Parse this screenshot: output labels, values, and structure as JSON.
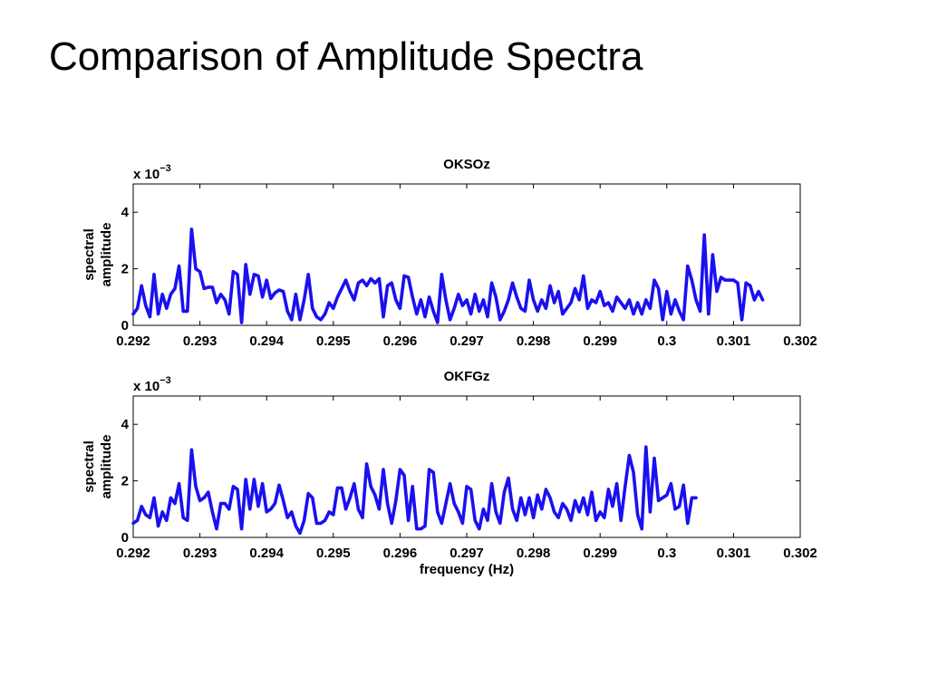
{
  "slide": {
    "title": "Comparison of Amplitude Spectra"
  },
  "chart_data": [
    {
      "type": "line",
      "title": "OKSOz",
      "xlabel": "",
      "ylabel": [
        "spectral",
        "amplitude"
      ],
      "exponent_label": "x 10",
      "exponent": "−3",
      "xlim": [
        0.292,
        0.302
      ],
      "ylim": [
        0,
        5
      ],
      "xticks": [
        0.292,
        0.293,
        0.294,
        0.295,
        0.296,
        0.297,
        0.298,
        0.299,
        0.3,
        0.301,
        0.302
      ],
      "xtick_labels": [
        "0.292",
        "0.293",
        "0.294",
        "0.295",
        "0.296",
        "0.297",
        "0.298",
        "0.299",
        "0.3",
        "0.301",
        "0.302"
      ],
      "yticks": [
        0,
        2,
        4
      ],
      "ytick_labels": [
        "0",
        "2",
        "4"
      ],
      "line_color": "#1a10f0",
      "series": [
        {
          "x0": 0.292,
          "dx": 6.25e-05,
          "values": [
            0.4,
            0.6,
            1.4,
            0.7,
            0.3,
            1.8,
            0.4,
            1.1,
            0.6,
            1.1,
            1.3,
            2.1,
            0.5,
            0.5,
            3.4,
            2.0,
            1.9,
            1.3,
            1.35,
            1.35,
            0.8,
            1.1,
            0.9,
            0.4,
            1.9,
            1.8,
            0.1,
            2.15,
            1.1,
            1.8,
            1.75,
            1.0,
            1.6,
            0.95,
            1.15,
            1.25,
            1.2,
            0.5,
            0.2,
            1.1,
            0.2,
            0.9,
            1.8,
            0.6,
            0.3,
            0.2,
            0.4,
            0.8,
            0.6,
            1.0,
            1.3,
            1.6,
            1.2,
            0.9,
            1.5,
            1.6,
            1.4,
            1.65,
            1.5,
            1.65,
            0.3,
            1.4,
            1.5,
            0.9,
            0.6,
            1.75,
            1.7,
            1.0,
            0.4,
            0.9,
            0.3,
            1.0,
            0.5,
            0.1,
            1.8,
            0.9,
            0.2,
            0.6,
            1.1,
            0.7,
            0.9,
            0.4,
            1.1,
            0.5,
            0.9,
            0.3,
            1.5,
            1.0,
            0.2,
            0.5,
            0.9,
            1.5,
            1.0,
            0.6,
            0.5,
            1.6,
            0.9,
            0.5,
            0.9,
            0.6,
            1.4,
            0.8,
            1.2,
            0.4,
            0.6,
            0.8,
            1.3,
            0.9,
            1.75,
            0.6,
            0.9,
            0.8,
            1.2,
            0.7,
            0.8,
            0.5,
            1.0,
            0.8,
            0.6,
            0.9,
            0.4,
            0.8,
            0.4,
            0.9,
            0.6,
            1.6,
            1.3,
            0.2,
            1.2,
            0.4,
            0.9,
            0.5,
            0.2,
            2.1,
            1.6,
            0.9,
            0.5,
            3.2,
            0.4,
            2.5,
            1.2,
            1.7,
            1.6,
            1.6,
            1.6,
            1.5,
            0.2,
            1.5,
            1.4,
            0.9,
            1.2,
            0.9
          ]
        }
      ]
    },
    {
      "type": "line",
      "title": "OKFGz",
      "xlabel": "frequency (Hz)",
      "ylabel": [
        "spectral",
        "amplitude"
      ],
      "exponent_label": "x 10",
      "exponent": "−3",
      "xlim": [
        0.292,
        0.302
      ],
      "ylim": [
        0,
        5
      ],
      "xticks": [
        0.292,
        0.293,
        0.294,
        0.295,
        0.296,
        0.297,
        0.298,
        0.299,
        0.3,
        0.301,
        0.302
      ],
      "xtick_labels": [
        "0.292",
        "0.293",
        "0.294",
        "0.295",
        "0.296",
        "0.297",
        "0.298",
        "0.299",
        "0.3",
        "0.301",
        "0.302"
      ],
      "yticks": [
        0,
        2,
        4
      ],
      "ytick_labels": [
        "0",
        "2",
        "4"
      ],
      "line_color": "#1a10f0",
      "series": [
        {
          "x0": 0.292,
          "dx": 6.25e-05,
          "values": [
            0.5,
            0.6,
            1.1,
            0.8,
            0.7,
            1.4,
            0.4,
            0.9,
            0.6,
            1.4,
            1.2,
            1.9,
            0.7,
            0.6,
            3.1,
            1.8,
            1.3,
            1.4,
            1.6,
            0.9,
            0.3,
            1.2,
            1.2,
            1.0,
            1.8,
            1.7,
            0.3,
            2.05,
            1.0,
            2.05,
            1.1,
            1.9,
            0.9,
            1.0,
            1.2,
            1.85,
            1.3,
            0.7,
            0.9,
            0.4,
            0.15,
            0.6,
            1.55,
            1.4,
            0.5,
            0.5,
            0.6,
            0.9,
            0.8,
            1.75,
            1.75,
            1.0,
            1.4,
            1.9,
            1.0,
            0.7,
            2.6,
            1.8,
            1.5,
            1.0,
            2.4,
            1.2,
            0.5,
            1.3,
            2.4,
            2.2,
            0.6,
            1.8,
            0.3,
            0.3,
            0.4,
            2.4,
            2.3,
            0.9,
            0.5,
            1.2,
            1.9,
            1.2,
            0.9,
            0.5,
            1.8,
            1.7,
            0.6,
            0.3,
            1.0,
            0.6,
            1.9,
            0.9,
            0.5,
            1.6,
            2.1,
            1.0,
            0.6,
            1.4,
            0.8,
            1.4,
            0.7,
            1.5,
            1.0,
            1.7,
            1.4,
            0.9,
            0.7,
            1.2,
            1.0,
            0.6,
            1.3,
            0.9,
            1.4,
            0.8,
            1.6,
            0.6,
            0.9,
            0.7,
            1.7,
            1.1,
            1.9,
            0.6,
            1.8,
            2.9,
            2.3,
            0.8,
            0.3,
            3.2,
            0.9,
            2.8,
            1.3,
            1.4,
            1.5,
            1.9,
            1.0,
            1.1,
            1.85,
            0.5,
            1.4,
            1.4
          ]
        }
      ]
    }
  ]
}
